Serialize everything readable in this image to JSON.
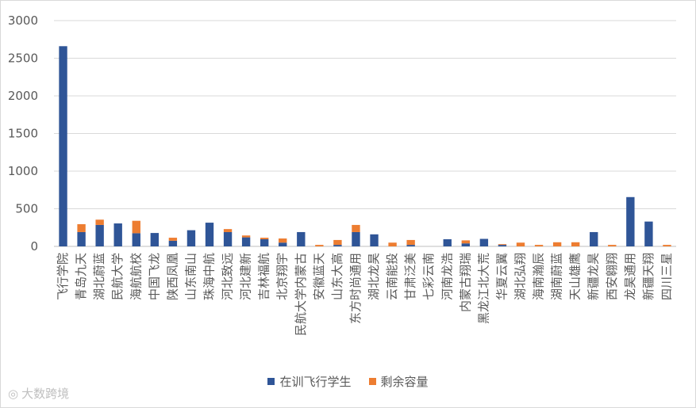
{
  "chart_data": {
    "type": "bar",
    "stacked": true,
    "categories": [
      "飞行学院",
      "青岛九天",
      "湖北蔚蓝",
      "民航大学",
      "海航航校",
      "中国飞龙",
      "陕西凤凰",
      "山东南山",
      "珠海中航",
      "河北致远",
      "河北建新",
      "吉林福航",
      "北京翔宇",
      "民航大学内蒙古",
      "安徽蓝天",
      "山东大高",
      "东方时尚通用",
      "湖北龙昊",
      "云南能投",
      "甘肃泛美",
      "七彩云南",
      "河南龙浩",
      "内蒙古翔瑞",
      "黑龙江北大荒",
      "华夏云翼",
      "湖北弘翔",
      "海南瀚辰",
      "湖南蔚蓝",
      "天山雄鹰",
      "新疆龙昊",
      "西安翱翔",
      "龙昊通用",
      "新疆天翔",
      "四川三星"
    ],
    "series": [
      {
        "name": "在训飞行学生",
        "color": "#2f5597",
        "values": [
          2660,
          190,
          285,
          305,
          175,
          178,
          75,
          215,
          315,
          190,
          120,
          95,
          50,
          190,
          0,
          20,
          190,
          160,
          0,
          20,
          0,
          95,
          40,
          100,
          20,
          0,
          0,
          0,
          0,
          190,
          0,
          655,
          330,
          0
        ]
      },
      {
        "name": "剩余容量",
        "color": "#ed7d31",
        "values": [
          0,
          105,
          70,
          0,
          165,
          0,
          40,
          0,
          0,
          40,
          25,
          20,
          55,
          0,
          20,
          65,
          95,
          0,
          50,
          65,
          0,
          0,
          40,
          0,
          10,
          50,
          20,
          55,
          55,
          0,
          20,
          0,
          0,
          20
        ]
      }
    ],
    "ylim": [
      0,
      3000
    ],
    "yticks": [
      0,
      500,
      1000,
      1500,
      2000,
      2500,
      3000
    ],
    "legend_position": "bottom"
  },
  "watermark": "大数跨境"
}
